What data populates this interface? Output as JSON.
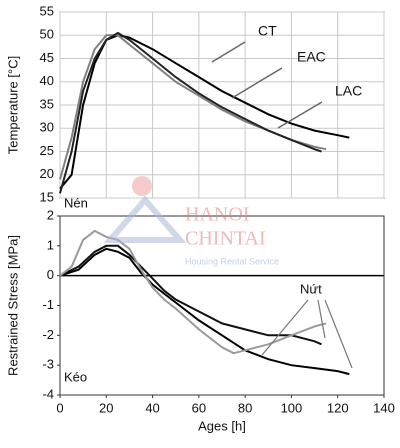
{
  "chart_data": [
    {
      "type": "line",
      "ylabel": "Temperature [°C]",
      "xlim": [
        0,
        140
      ],
      "xticks": [
        0,
        20,
        40,
        60,
        80,
        100,
        120,
        140
      ],
      "ylim": [
        15,
        55
      ],
      "yticks": [
        15,
        20,
        25,
        30,
        35,
        40,
        45,
        50,
        55
      ],
      "grid": true,
      "series": [
        {
          "name": "CT",
          "color": "#000000",
          "x": [
            0,
            5,
            10,
            15,
            20,
            25,
            30,
            40,
            50,
            60,
            70,
            80,
            90,
            100,
            110,
            120,
            125
          ],
          "values": [
            17,
            20,
            35,
            44,
            49,
            50,
            49.5,
            47,
            44,
            41,
            38,
            35.5,
            33,
            31,
            29.5,
            28.5,
            28
          ]
        },
        {
          "name": "EAC",
          "color": "#808080",
          "x": [
            0,
            5,
            10,
            15,
            20,
            25,
            30,
            40,
            50,
            60,
            70,
            80,
            90,
            100,
            110,
            115
          ],
          "values": [
            19,
            28,
            40,
            47,
            50,
            50,
            48,
            44,
            40,
            37,
            34,
            31.5,
            29.5,
            27.5,
            26,
            25.5
          ]
        },
        {
          "name": "LAC",
          "color": "#222222",
          "x": [
            0,
            5,
            10,
            15,
            20,
            25,
            30,
            40,
            50,
            60,
            70,
            80,
            90,
            100,
            110,
            113
          ],
          "values": [
            16,
            25,
            38,
            45,
            49,
            50.5,
            49,
            45,
            41,
            37.5,
            34.5,
            32,
            29.5,
            27.5,
            25.5,
            25
          ]
        }
      ]
    },
    {
      "type": "line",
      "ylabel": "Restrained Stress [MPa]",
      "xlabel": "Ages [h]",
      "xlim": [
        0,
        140
      ],
      "xticks": [
        0,
        20,
        40,
        60,
        80,
        100,
        120,
        140
      ],
      "ylim": [
        -4,
        2
      ],
      "yticks": [
        -4,
        -3,
        -2,
        -1,
        0,
        1,
        2
      ],
      "grid": false,
      "annotations": [
        "Nén",
        "Kéo",
        "Nứt"
      ],
      "series": [
        {
          "color": "#111111",
          "x": [
            0,
            8,
            15,
            20,
            25,
            30,
            35,
            40,
            45,
            50,
            60,
            70,
            80,
            90,
            100,
            110,
            113
          ],
          "values": [
            0,
            0.3,
            0.8,
            1.0,
            1.0,
            0.7,
            0.3,
            -0.1,
            -0.5,
            -0.8,
            -1.2,
            -1.6,
            -1.8,
            -2.0,
            -2.0,
            -2.2,
            -2.3
          ]
        },
        {
          "color": "#000000",
          "x": [
            0,
            8,
            15,
            20,
            25,
            30,
            35,
            40,
            45,
            50,
            60,
            70,
            80,
            90,
            100,
            110,
            120,
            125
          ],
          "values": [
            0,
            0.2,
            0.7,
            0.9,
            0.8,
            0.6,
            0.1,
            -0.3,
            -0.6,
            -0.9,
            -1.5,
            -2.0,
            -2.5,
            -2.8,
            -3.0,
            -3.1,
            -3.2,
            -3.3
          ]
        },
        {
          "color": "#9a9a9a",
          "x": [
            0,
            5,
            10,
            15,
            20,
            25,
            30,
            35,
            40,
            45,
            50,
            60,
            70,
            75,
            80,
            90,
            100,
            110,
            115
          ],
          "values": [
            0,
            0.3,
            1.2,
            1.5,
            1.3,
            1.2,
            0.9,
            0.2,
            -0.4,
            -0.8,
            -1.1,
            -1.8,
            -2.4,
            -2.6,
            -2.5,
            -2.3,
            -2.0,
            -1.7,
            -1.6
          ]
        }
      ]
    }
  ],
  "watermark": {
    "line1": "HANOI",
    "line2": "CHINTAI",
    "line3": "Housing Rental Service"
  }
}
